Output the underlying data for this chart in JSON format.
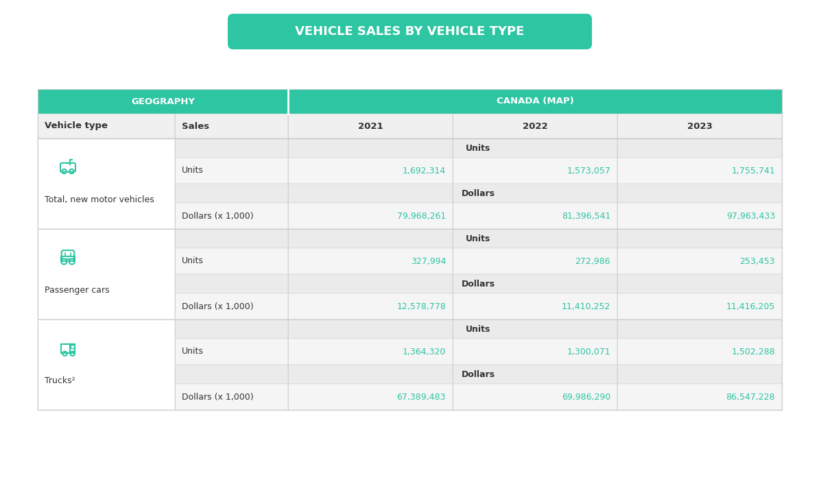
{
  "title": "VEHICLE SALES BY VEHICLE TYPE",
  "teal": "#2dc5a2",
  "white": "#ffffff",
  "dark": "#333333",
  "light_gray1": "#ebebeb",
  "light_gray2": "#f5f5f5",
  "header_gray": "#f0f0f0",
  "border_color": "#cccccc",
  "subheader_row": [
    "Vehicle type",
    "Sales",
    "2021",
    "2022",
    "2023"
  ],
  "sections": [
    {
      "vehicle_type": "Total, new motor vehicles",
      "icon_type": "motor",
      "data": [
        {
          "type": "subheader",
          "label": "",
          "values": [
            "Units",
            "",
            ""
          ]
        },
        {
          "type": "data",
          "label": "Units",
          "values": [
            "1,692,314",
            "1,573,057",
            "1,755,741"
          ]
        },
        {
          "type": "subheader",
          "label": "",
          "values": [
            "Dollars",
            "",
            ""
          ]
        },
        {
          "type": "data",
          "label": "Dollars (x 1,000)",
          "values": [
            "79,968,261",
            "81,396,541",
            "97,963,433"
          ]
        }
      ]
    },
    {
      "vehicle_type": "Passenger cars",
      "icon_type": "car",
      "data": [
        {
          "type": "subheader",
          "label": "",
          "values": [
            "Units",
            "",
            ""
          ]
        },
        {
          "type": "data",
          "label": "Units",
          "values": [
            "327,994",
            "272,986",
            "253,453"
          ]
        },
        {
          "type": "subheader",
          "label": "",
          "values": [
            "Dollars",
            "",
            ""
          ]
        },
        {
          "type": "data",
          "label": "Dollars (x 1,000)",
          "values": [
            "12,578,778",
            "11,410,252",
            "11,416,205"
          ]
        }
      ]
    },
    {
      "vehicle_type": "Trucks²",
      "icon_type": "truck",
      "data": [
        {
          "type": "subheader",
          "label": "",
          "values": [
            "Units",
            "",
            ""
          ]
        },
        {
          "type": "data",
          "label": "Units",
          "values": [
            "1,364,320",
            "1,300,071",
            "1,502,288"
          ]
        },
        {
          "type": "subheader",
          "label": "",
          "values": [
            "Dollars",
            "",
            ""
          ]
        },
        {
          "type": "data",
          "label": "Dollars (x 1,000)",
          "values": [
            "67,389,483",
            "69,986,290",
            "86,547,228"
          ]
        }
      ]
    }
  ],
  "figsize": [
    11.94,
    7.09
  ],
  "dpi": 100
}
